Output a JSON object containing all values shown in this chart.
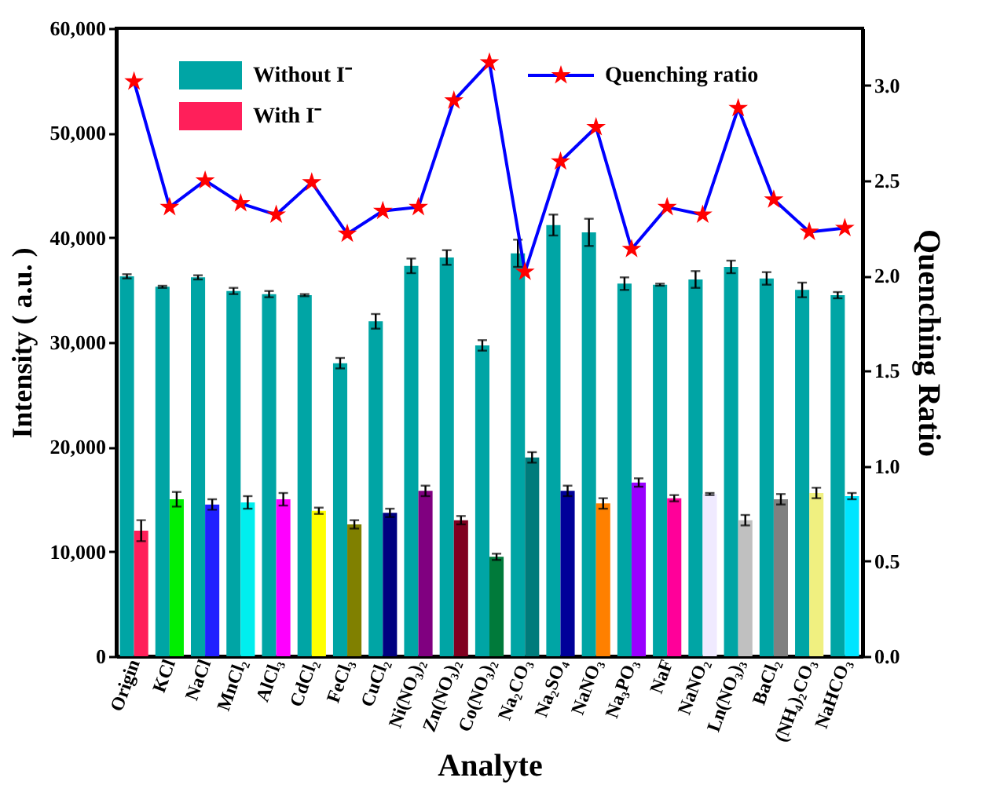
{
  "chart_data": {
    "type": "bar",
    "xlabel": "Analyte",
    "ylabel": "Intensity ( a.u. )",
    "y2label": "Quenching Ratio",
    "categories": [
      "Origin",
      "KCl",
      "NaCl",
      "MnCl₂",
      "AlCl₃",
      "CdCl₂",
      "FeCl₃",
      "CuCl₂",
      "Ni(NO₃)₂",
      "Zn(NO₃)₂",
      "Co(NO₃)₂",
      "Na₂CO₃",
      "Na₂SO₄",
      "NaNO₃",
      "Na₃PO₃",
      "NaF",
      "NaNO₂",
      "Ln(NO₃)₃",
      "BaCl₂",
      "(NH₄)₂CO₃",
      "NaHCO₃"
    ],
    "ylim": [
      0,
      60000
    ],
    "yticks": [
      0,
      {
        "value": 10000,
        "label": "10,000"
      },
      {
        "value": 20000,
        "label": "20,000"
      },
      {
        "value": 30000,
        "label": "30,000"
      },
      {
        "value": 40000,
        "label": "40,000"
      },
      {
        "value": 50000,
        "label": "50,000"
      },
      {
        "value": 60000,
        "label": "60,000"
      }
    ],
    "y2lim": [
      0,
      3.3
    ],
    "y2ticks": [
      {
        "value": 0,
        "label": "0.0"
      },
      0.5,
      {
        "value": 1,
        "label": "1.0"
      },
      1.5,
      {
        "value": 2,
        "label": "2.0"
      },
      2.5,
      {
        "value": 3,
        "label": "3.0"
      }
    ],
    "legend": "top",
    "grid": false,
    "marker": "star",
    "series": [
      {
        "name": "Without I⁻",
        "color": "#00a5a5",
        "values": [
          36300,
          35300,
          36200,
          34900,
          34600,
          34500,
          28000,
          32000,
          37300,
          38100,
          29700,
          38500,
          41200,
          40500,
          35600,
          35500,
          36000,
          37200,
          36100,
          35000,
          34500
        ],
        "errors": [
          200,
          100,
          200,
          300,
          300,
          100,
          500,
          700,
          700,
          700,
          500,
          1300,
          1000,
          1300,
          600,
          100,
          800,
          600,
          600,
          700,
          300
        ]
      },
      {
        "name": "With I⁻",
        "color": "#ff1f5a",
        "colors": [
          "#ff1f5a",
          "#00ee00",
          "#2020ff",
          "#00eeee",
          "#ff00ff",
          "#ffff00",
          "#808000",
          "#000080",
          "#800080",
          "#800020",
          "#007a3a",
          "#007b7b",
          "#000099",
          "#ff8000",
          "#9900ff",
          "#ff0099",
          "#f0eaff",
          "#c0c0c0",
          "#808080",
          "#f0f080",
          "#00e5ff"
        ],
        "values": [
          12000,
          15000,
          14500,
          14700,
          15000,
          13900,
          12600,
          13700,
          15800,
          13000,
          9500,
          19000,
          15800,
          14600,
          16600,
          15100,
          15500,
          13000,
          15000,
          15600,
          15300
        ],
        "errors": [
          1000,
          700,
          500,
          600,
          600,
          300,
          400,
          400,
          500,
          400,
          300,
          500,
          500,
          500,
          400,
          300,
          100,
          500,
          500,
          500,
          300
        ]
      },
      {
        "name": "Quenching ratio",
        "type": "line",
        "axis": "y2",
        "color": "#0000ff",
        "values": [
          3.02,
          2.36,
          2.5,
          2.38,
          2.32,
          2.49,
          2.22,
          2.34,
          2.36,
          2.92,
          3.12,
          2.02,
          2.6,
          2.78,
          2.14,
          2.36,
          2.32,
          2.88,
          2.4,
          2.23,
          2.25
        ]
      }
    ]
  }
}
